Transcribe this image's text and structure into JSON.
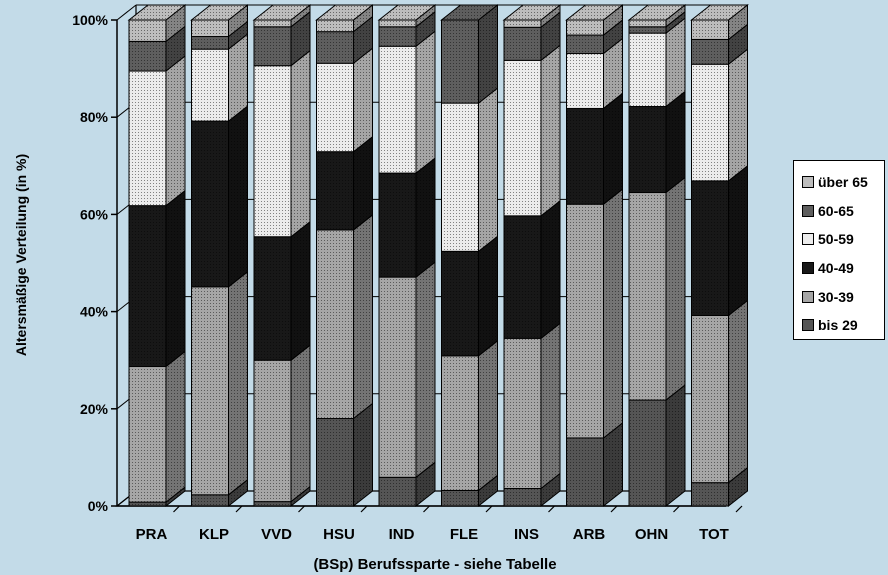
{
  "chart_data": {
    "type": "bar",
    "stacked": true,
    "three_d": true,
    "xlabel": "(BSp) Berufssparte - siehe Tabelle",
    "ylabel": "Altersmäßige Verteilung (in %)",
    "ylim": [
      0,
      100
    ],
    "yticks": [
      "0%",
      "20%",
      "40%",
      "60%",
      "80%",
      "100%"
    ],
    "grid": true,
    "legend_position": "right",
    "categories": [
      "PRA",
      "KLP",
      "VVD",
      "HSU",
      "IND",
      "FLE",
      "INS",
      "ARB",
      "OHN",
      "TOT"
    ],
    "series": [
      {
        "name": "bis 29",
        "values": [
          0.8,
          2.3,
          0.9,
          18.0,
          5.9,
          3.2,
          3.6,
          14.0,
          21.8,
          4.8
        ]
      },
      {
        "name": "30-39",
        "values": [
          27.9,
          42.8,
          29.1,
          38.8,
          41.2,
          27.7,
          30.9,
          48.1,
          42.7,
          34.4
        ]
      },
      {
        "name": "40-49",
        "values": [
          33.1,
          34.1,
          25.4,
          16.1,
          21.4,
          21.5,
          25.2,
          19.7,
          17.7,
          27.7
        ]
      },
      {
        "name": "50-59",
        "values": [
          27.7,
          14.8,
          35.2,
          18.2,
          26.1,
          30.5,
          32.0,
          11.3,
          15.1,
          24.0
        ]
      },
      {
        "name": "60-65",
        "values": [
          6.1,
          2.6,
          8.0,
          6.5,
          4.0,
          17.1,
          6.8,
          3.8,
          1.3,
          5.1
        ]
      },
      {
        "name": "über 65",
        "values": [
          4.4,
          3.4,
          1.4,
          2.4,
          1.4,
          0.0,
          1.5,
          3.1,
          1.4,
          4.0
        ]
      }
    ],
    "colors": {
      "bis 29": "#555555",
      "30-39": "#a6a6a6",
      "40-49": "#181818",
      "50-59": "#ececec",
      "60-65": "#5e5e5e",
      "über 65": "#bdbdbd"
    },
    "legend_order": [
      "über 65",
      "60-65",
      "50-59",
      "40-49",
      "30-39",
      "bis 29"
    ]
  }
}
